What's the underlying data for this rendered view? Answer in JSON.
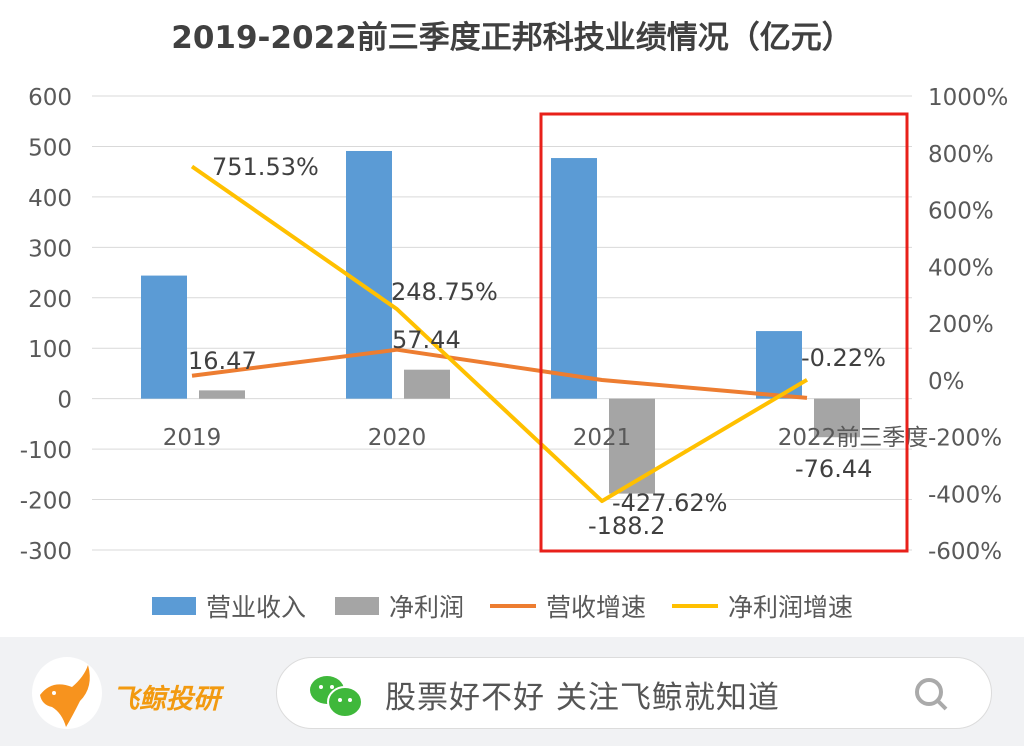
{
  "chart_data": {
    "type": "bar+line",
    "title": "2019-2022前三季度正邦科技业绩情况（亿元）",
    "categories": [
      "2019",
      "2020",
      "2021",
      "2022前三季度"
    ],
    "series": [
      {
        "name": "营业收入",
        "type": "bar",
        "axis": "left",
        "color": "#5b9bd5",
        "values": [
          244,
          491,
          477,
          134
        ]
      },
      {
        "name": "净利润",
        "type": "bar",
        "axis": "left",
        "color": "#a5a5a5",
        "values": [
          16.47,
          57.44,
          -188.2,
          -76.44
        ],
        "labels": [
          "16.47",
          "57.44",
          "-188.2",
          "-76.44"
        ]
      },
      {
        "name": "营收增速",
        "type": "line",
        "axis": "right",
        "color": "#ed7d31",
        "values": [
          14,
          106,
          -1,
          -64
        ]
      },
      {
        "name": "净利润增速",
        "type": "line",
        "axis": "right",
        "color": "#ffc000",
        "values": [
          751.53,
          248.75,
          -427.62,
          -0.22
        ],
        "labels": [
          "751.53%",
          "248.75%",
          "-427.62%",
          "-0.22%"
        ]
      }
    ],
    "ylim": [
      -300,
      600
    ],
    "yticks": [
      "600",
      "500",
      "400",
      "300",
      "200",
      "100",
      "0",
      "-100",
      "-200",
      "-300"
    ],
    "y2lim": [
      -600,
      1000
    ],
    "y2ticks": [
      "1000%",
      "800%",
      "600%",
      "400%",
      "200%",
      "0%",
      "-200%",
      "-400%",
      "-600%"
    ],
    "grid": true,
    "legend": "bottom",
    "highlight": {
      "category": "2021 to 2022前三季度",
      "color": "#e8201a"
    }
  },
  "footer": {
    "brand": "飞鲸投研",
    "slogan": "股票好不好 关注飞鲸就知道",
    "icons": [
      "fish-logo-icon",
      "wechat-icon",
      "search-icon"
    ]
  }
}
